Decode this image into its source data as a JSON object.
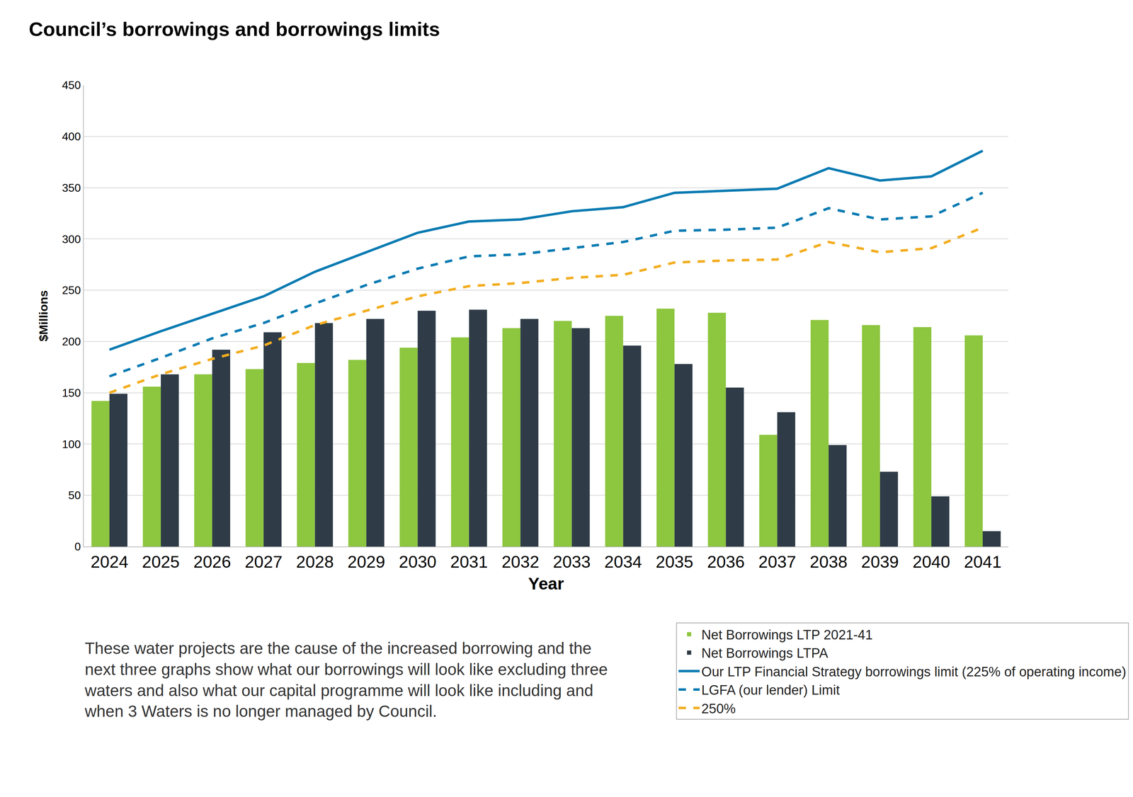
{
  "chart_data": {
    "type": "bar",
    "title": "Council’s borrowings and borrowings limits",
    "x_label": "Year",
    "y_label": "$Millions",
    "categories": [
      "2024",
      "2025",
      "2026",
      "2027",
      "2028",
      "2029",
      "2030",
      "2031",
      "2032",
      "2033",
      "2034",
      "2035",
      "2036",
      "2037",
      "2038",
      "2039",
      "2040",
      "2041"
    ],
    "series": [
      {
        "name": "Net Borrowings LTP 2021-41",
        "type": "bar",
        "color": "#8dc63f",
        "values": [
          142,
          156,
          168,
          173,
          179,
          182,
          194,
          204,
          213,
          220,
          225,
          232,
          228,
          109,
          221,
          216,
          214,
          206
        ]
      },
      {
        "name": "Net Borrowings LTPA",
        "type": "bar",
        "color": "#2f3c47",
        "values": [
          149,
          168,
          192,
          209,
          218,
          222,
          230,
          231,
          222,
          213,
          196,
          178,
          155,
          131,
          99,
          73,
          49,
          15
        ]
      },
      {
        "name": "Our LTP Financial Strategy borrowings limit (225% of operating income)",
        "type": "line",
        "line_style": "solid",
        "color": "#0b7bb2",
        "values": [
          192,
          210,
          227,
          244,
          268,
          287,
          306,
          317,
          319,
          327,
          331,
          345,
          347,
          349,
          369,
          357,
          361,
          386
        ]
      },
      {
        "name": "LGFA (our lender) Limit",
        "type": "line",
        "line_style": "dashed",
        "color": "#0b7bb2",
        "values": [
          166,
          184,
          203,
          218,
          237,
          255,
          271,
          283,
          285,
          291,
          297,
          308,
          309,
          311,
          330,
          319,
          322,
          345
        ]
      },
      {
        "name": "250%",
        "type": "line",
        "line_style": "dashed",
        "color": "#f2ad1f",
        "values": [
          150,
          168,
          183,
          196,
          216,
          230,
          244,
          254,
          257,
          262,
          265,
          277,
          279,
          280,
          297,
          287,
          291,
          311
        ]
      }
    ],
    "ylim": [
      0,
      450
    ],
    "yticks": [
      0,
      50,
      100,
      150,
      200,
      250,
      300,
      350,
      400,
      450
    ],
    "grid": true,
    "legend": "bottom right",
    "note": [
      "These water projects are the cause of the increased borrowing and the",
      "next three graphs show what our borrowings will look like excluding three",
      "waters and also what our capital programme will look like including and",
      "when 3 Waters is no longer managed by Council."
    ]
  }
}
